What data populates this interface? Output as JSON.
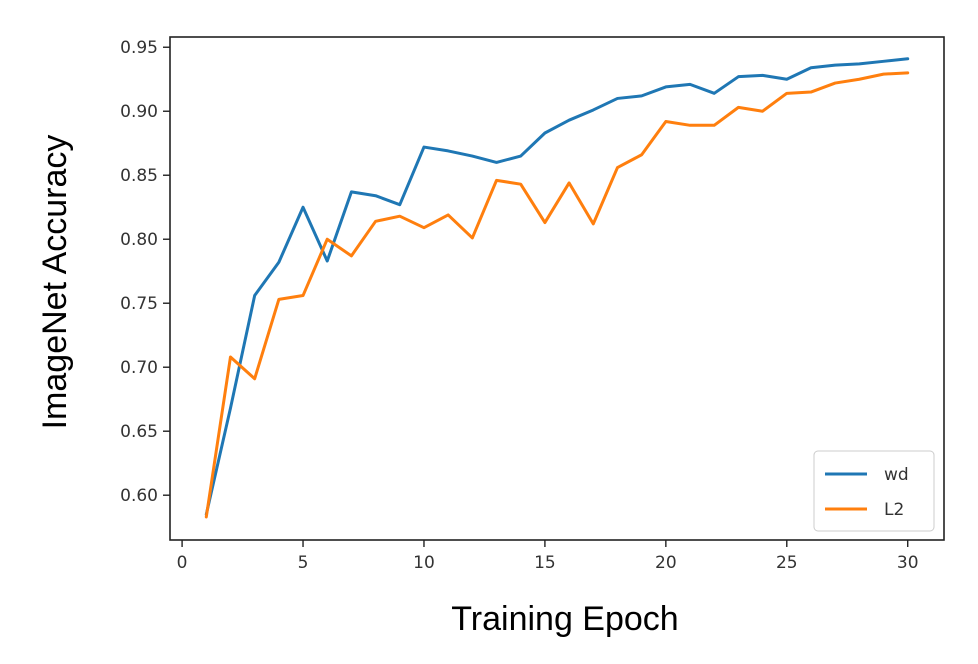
{
  "chart_data": {
    "type": "line",
    "title": "",
    "xlabel": "Training Epoch",
    "ylabel": "ImageNet Accuracy",
    "xlim": [
      -0.5,
      31.5
    ],
    "ylim": [
      0.565,
      0.958
    ],
    "x_ticks": [
      0,
      5,
      10,
      15,
      20,
      25,
      30
    ],
    "y_ticks": [
      0.6,
      0.65,
      0.7,
      0.75,
      0.8,
      0.85,
      0.9,
      0.95
    ],
    "x_tick_labels": [
      "0",
      "5",
      "10",
      "15",
      "20",
      "25",
      "30"
    ],
    "y_tick_labels": [
      "0.60",
      "0.65",
      "0.70",
      "0.75",
      "0.80",
      "0.85",
      "0.90",
      "0.95"
    ],
    "grid": false,
    "legend_position": "bottom-right",
    "x": [
      1,
      2,
      3,
      4,
      5,
      6,
      7,
      8,
      9,
      10,
      11,
      12,
      13,
      14,
      15,
      16,
      17,
      18,
      19,
      20,
      21,
      22,
      23,
      24,
      25,
      26,
      27,
      28,
      29,
      30
    ],
    "series": [
      {
        "name": "wd",
        "color": "#1f77b4",
        "values": [
          0.585,
          0.668,
          0.756,
          0.782,
          0.825,
          0.783,
          0.837,
          0.834,
          0.827,
          0.872,
          0.869,
          0.865,
          0.86,
          0.865,
          0.883,
          0.893,
          0.901,
          0.91,
          0.912,
          0.919,
          0.921,
          0.914,
          0.927,
          0.928,
          0.925,
          0.934,
          0.936,
          0.937,
          0.939,
          0.941
        ]
      },
      {
        "name": "L2",
        "color": "#ff7f0e",
        "values": [
          0.583,
          0.708,
          0.691,
          0.753,
          0.756,
          0.8,
          0.787,
          0.814,
          0.818,
          0.809,
          0.819,
          0.801,
          0.846,
          0.843,
          0.813,
          0.844,
          0.812,
          0.856,
          0.866,
          0.892,
          0.889,
          0.889,
          0.903,
          0.9,
          0.914,
          0.915,
          0.922,
          0.925,
          0.929,
          0.93
        ]
      }
    ]
  }
}
